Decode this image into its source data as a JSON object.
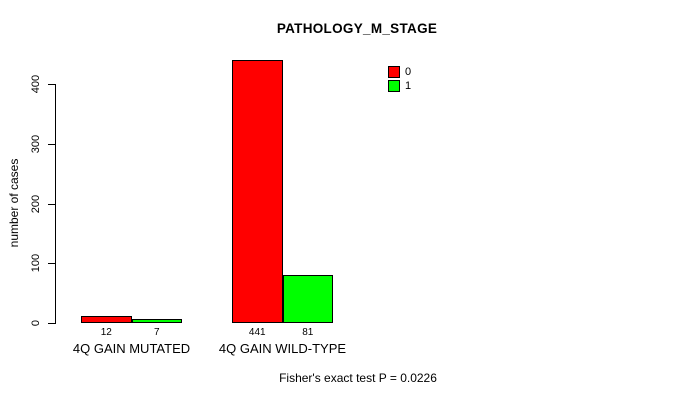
{
  "chart_data": {
    "type": "bar",
    "title": "PATHOLOGY_M_STAGE",
    "xlabel": "",
    "ylabel": "number of cases",
    "ylim": [
      0,
      441
    ],
    "yticks": [
      0,
      100,
      200,
      300,
      400
    ],
    "grid": false,
    "legend_position": "top-right",
    "categories": [
      "4Q GAIN MUTATED",
      "4Q GAIN WILD-TYPE"
    ],
    "series": [
      {
        "name": "0",
        "color": "#ff0000",
        "values": [
          12,
          441
        ]
      },
      {
        "name": "1",
        "color": "#00ff00",
        "values": [
          7,
          81
        ]
      }
    ],
    "bar_value_labels": [
      [
        "12",
        "441"
      ],
      [
        "7",
        "81"
      ]
    ],
    "annotation": "Fisher's exact test P = 0.0226"
  },
  "colors": {
    "background": "#ffffff",
    "axis": "#000000",
    "text": "#000000",
    "series_0": "#ff0000",
    "series_1": "#00ff00"
  }
}
